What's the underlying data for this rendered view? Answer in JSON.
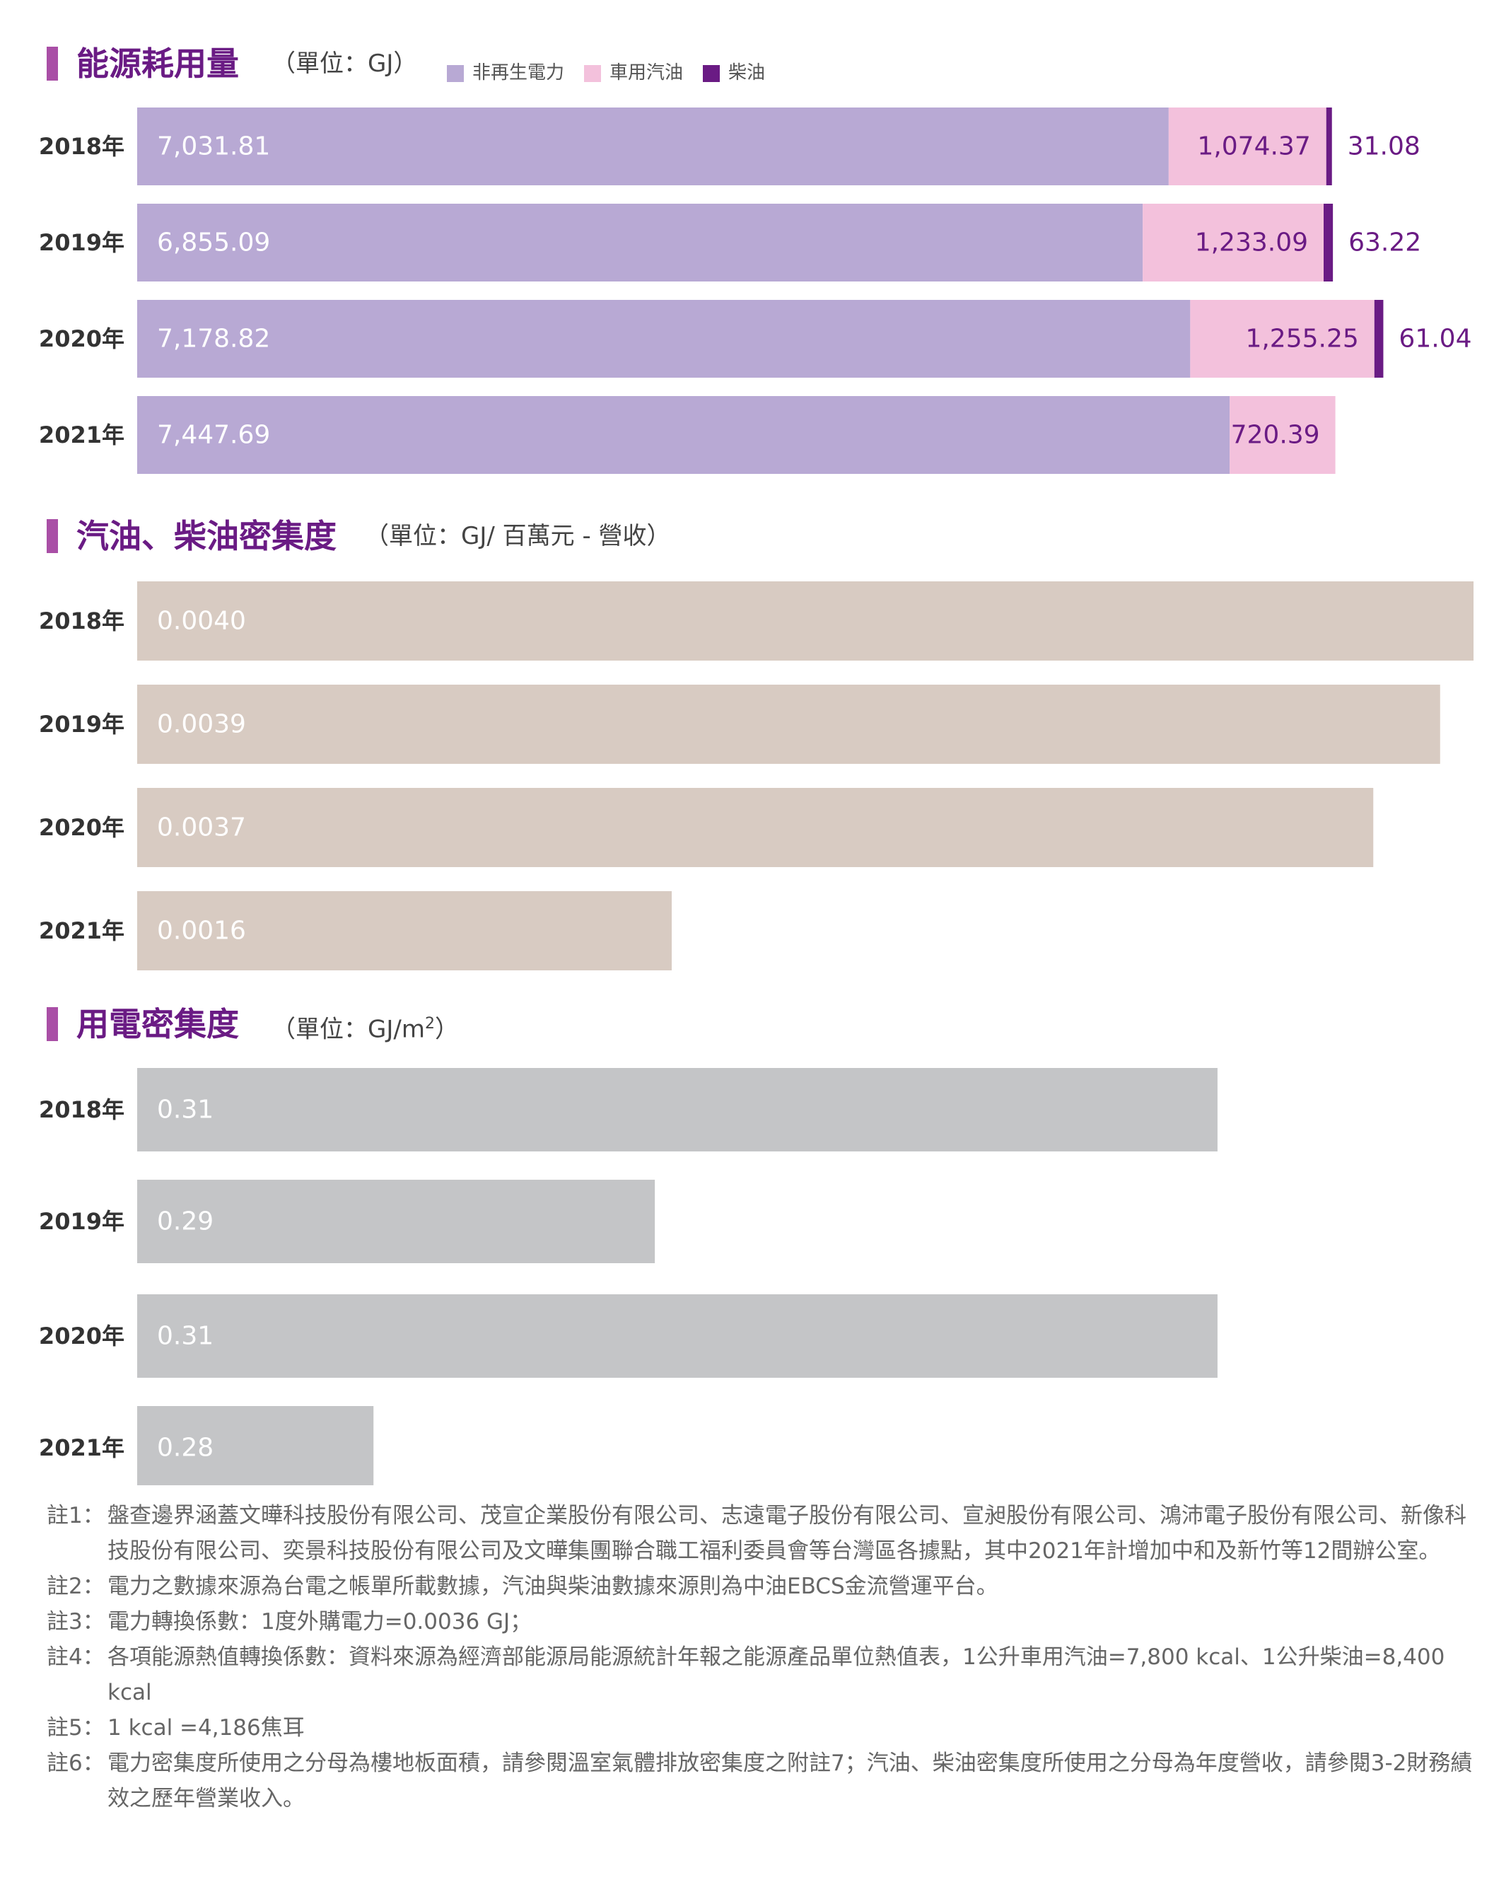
{
  "colors": {
    "accent": "#6a1b84",
    "head_marker": "#a94fa6",
    "non_renewable": "#b8a9d4",
    "gasoline": "#f3c1dc",
    "diesel": "#6a1b84",
    "intensity_bar": "#d8cbc2",
    "electric_bar": "#c4c5c7",
    "bar_label": "#ffffff",
    "value_outside": "#6a1b84"
  },
  "sections": {
    "energy": {
      "title": "能源耗用量",
      "unit": "（單位：GJ）"
    },
    "fuel": {
      "title": "汽油、柴油密集度",
      "unit": "（單位：GJ/ 百萬元 - 營收）"
    },
    "electric": {
      "title": "用電密集度",
      "unit_prefix": "（單位：GJ/m",
      "unit_sup": "2",
      "unit_suffix": "）"
    }
  },
  "legend": [
    {
      "label": "非再生電力",
      "color_key": "non_renewable"
    },
    {
      "label": "車用汽油",
      "color_key": "gasoline"
    },
    {
      "label": "柴油",
      "color_key": "diesel"
    }
  ],
  "chart_data": [
    {
      "type": "bar",
      "stacked": true,
      "orientation": "horizontal",
      "title": "能源耗用量",
      "unit": "GJ",
      "categories": [
        "2018年",
        "2019年",
        "2020年",
        "2021年"
      ],
      "series": [
        {
          "name": "非再生電力",
          "values": [
            7031.81,
            6855.09,
            7178.82,
            7447.69
          ],
          "labels": [
            "7,031.81",
            "6,855.09",
            "7,178.82",
            "7,447.69"
          ]
        },
        {
          "name": "車用汽油",
          "values": [
            1074.37,
            1233.09,
            1255.25,
            720.39
          ],
          "labels": [
            "1,074.37",
            "1,233.09",
            "1,255.25",
            "720.39"
          ]
        },
        {
          "name": "柴油",
          "values": [
            31.08,
            63.22,
            61.04,
            0
          ],
          "labels": [
            "31.08",
            "63.22",
            "61.04",
            ""
          ]
        }
      ],
      "xlim": [
        0,
        9110
      ],
      "grid": false,
      "legend": "top"
    },
    {
      "type": "bar",
      "orientation": "horizontal",
      "title": "汽油、柴油密集度",
      "unit": "GJ/ 百萬元 - 營收",
      "categories": [
        "2018年",
        "2019年",
        "2020年",
        "2021年"
      ],
      "values": [
        0.004,
        0.0039,
        0.0037,
        0.0016
      ],
      "labels": [
        "0.0040",
        "0.0039",
        "0.0037",
        "0.0016"
      ],
      "xlim": [
        0,
        0.004
      ],
      "grid": false
    },
    {
      "type": "bar",
      "orientation": "horizontal",
      "title": "用電密集度",
      "unit": "GJ/m²",
      "categories": [
        "2018年",
        "2019年",
        "2020年",
        "2021年"
      ],
      "values": [
        0.31,
        0.29,
        0.31,
        0.28
      ],
      "labels": [
        "0.31",
        "0.29",
        "0.31",
        "0.28"
      ],
      "xlim": [
        0.2716,
        0.3191
      ],
      "grid": false
    }
  ],
  "notes": [
    {
      "num": "註1：",
      "text": "盤查邊界涵蓋文曄科技股份有限公司、茂宣企業股份有限公司、志遠電子股份有限公司、宣昶股份有限公司、鴻沛電子股份有限公司、新像科技股份有限公司、奕景科技股份有限公司及文曄集團聯合職工福利委員會等台灣區各據點，其中2021年計增加中和及新竹等12間辦公室。"
    },
    {
      "num": "註2：",
      "text": "電力之數據來源為台電之帳單所載數據，汽油與柴油數據來源則為中油EBCS金流營運平台。"
    },
    {
      "num": "註3：",
      "text": "電力轉換係數：1度外購電力=0.0036 GJ；"
    },
    {
      "num": "註4：",
      "text": "各項能源熱值轉換係數：資料來源為經濟部能源局能源統計年報之能源產品單位熱值表，1公升車用汽油=7,800 kcal、1公升柴油=8,400 kcal"
    },
    {
      "num": "註5：",
      "text": "1 kcal =4,186焦耳"
    },
    {
      "num": "註6：",
      "text": "電力密集度所使用之分母為樓地板面積，請參閱溫室氣體排放密集度之附註7；汽油、柴油密集度所使用之分母為年度營收，請參閱3-2財務績效之歷年營業收入。"
    }
  ]
}
